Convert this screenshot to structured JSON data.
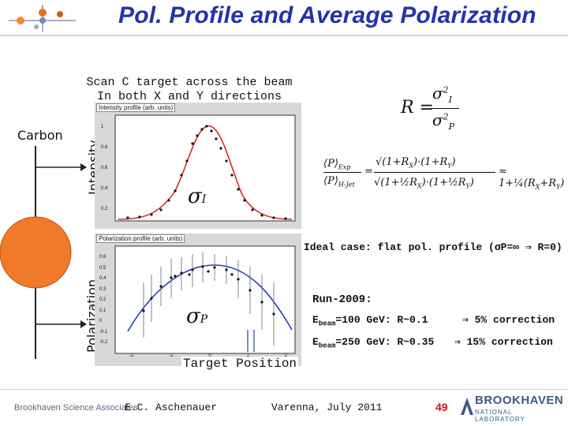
{
  "slide": {
    "title": "Pol. Profile and Average Polarization",
    "scan_line1": "Scan C target across the beam",
    "scan_line2": "In both X and Y directions",
    "carbon_label": "Carbon",
    "intensity_axis_label": "Intensity",
    "polarization_axis_label": "Polarization",
    "sigma_i": "σI",
    "sigma_p": "σP",
    "target_position_label": "Target Position",
    "ideal_case": "Ideal case: flat pol. profile (σP=∞ ⇒ R=0)",
    "run_title": "Run-2009:",
    "run_line1_prefix": "E",
    "run_line1_sub": "beam",
    "run_line1_rest": "=100 GeV: R~0.1",
    "run_line1_result": "⇒ 5% correction",
    "run_line2_prefix": "E",
    "run_line2_sub": "beam",
    "run_line2_rest": "=250 GeV: R~0.35",
    "run_line2_result": "⇒ 15% correction"
  },
  "plots": {
    "intensity_title": "Intensity profile (arb. units)",
    "intensity_yticks": [
      "1",
      "0.8",
      "0.6",
      "0.4",
      "0.2"
    ],
    "polarization_title": "Polarization profile (arb. units)",
    "polarization_yticks": [
      "0.6",
      "0.5",
      "0.4",
      "0.3",
      "0.2",
      "0.1",
      "0",
      "-0.1",
      "-0.2"
    ],
    "polarization_xticks": [
      "-2",
      "-1",
      "0",
      "1",
      "2"
    ]
  },
  "footer": {
    "org": "Brookhaven Science Associates",
    "author": "E.C. Aschenauer",
    "venue": "Varenna, July 2011",
    "page": "49",
    "logo_big": "BROOKHAVEN",
    "logo_small": "NATIONAL LABORATORY"
  },
  "colors": {
    "title": "#2233aa",
    "carbon_disk": "#f07a2a",
    "page_number": "#cc1122",
    "logo": "#3c5a85"
  }
}
